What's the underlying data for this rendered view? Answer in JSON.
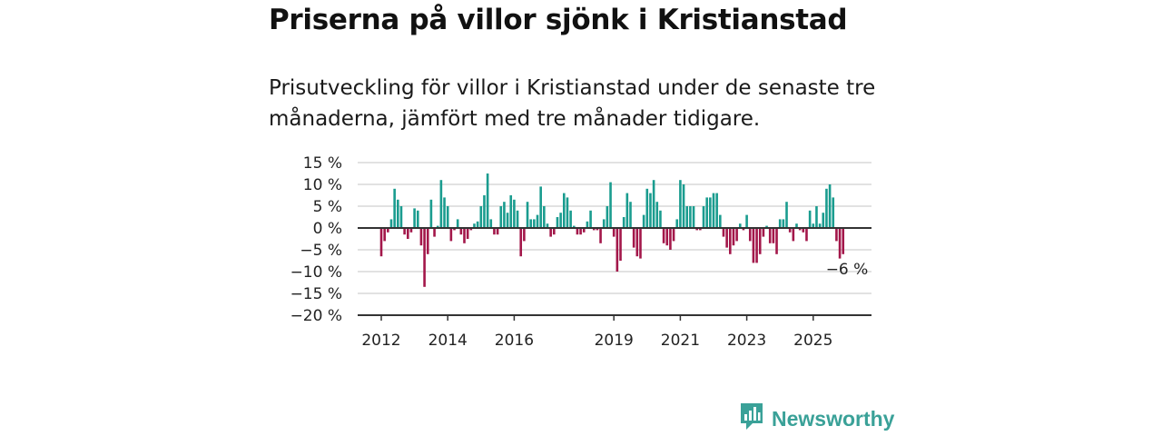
{
  "header": {
    "title": "Priserna på villor sjönk i Kristianstad",
    "subtitle": "Prisutveckling för villor i Kristianstad under de senaste tre månaderna, jämfört med tre månader tidigare."
  },
  "brand": {
    "name": "Newsworthy",
    "icon": "newsworthy-logo-icon",
    "color": "#3aa198"
  },
  "colors": {
    "positive": "#1a9c8f",
    "negative": "#a3174a",
    "grid": "#d9d9d9",
    "zero_line": "#333333"
  },
  "chart_data": {
    "type": "bar",
    "title": "",
    "xlabel": "",
    "ylabel": "",
    "ylim": [
      -20,
      15
    ],
    "yticks": [
      "15 %",
      "10 %",
      "5 %",
      "0 %",
      "−5 %",
      "−10 %",
      "−15 %",
      "−20 %"
    ],
    "ytick_values": [
      15,
      10,
      5,
      0,
      -5,
      -10,
      -15,
      -20
    ],
    "xticks": [
      "2012",
      "2014",
      "2016",
      "2019",
      "2021",
      "2023",
      "2025"
    ],
    "xtick_index": [
      0,
      20,
      40,
      70,
      90,
      110,
      130
    ],
    "annotation": {
      "text": "−6 %",
      "index": 134
    },
    "grid": true,
    "legend": "none",
    "series": [
      {
        "values": [
          -6.5,
          -3.0,
          -1.0,
          2.0,
          9.0,
          6.5,
          5.0,
          -1.5,
          -2.5,
          -1.0,
          4.5,
          4.0,
          -4.0,
          -13.5,
          -6.0,
          6.5,
          -2.0,
          0.5,
          11.0,
          7.0,
          5.0,
          -3.0,
          -0.5,
          2.0,
          -1.5,
          -3.5,
          -2.5,
          -0.5,
          1.0,
          1.5,
          5.0,
          7.5,
          12.5,
          2.0,
          -1.5,
          -1.5,
          5.0,
          6.0,
          3.5,
          7.5,
          6.5,
          4.0,
          -6.5,
          -3.0,
          6.0,
          2.0,
          2.0,
          3.0,
          9.5,
          5.0,
          1.0,
          -2.0,
          -1.5,
          2.5,
          3.5,
          8.0,
          7.0,
          4.0,
          0.5,
          -1.5,
          -1.5,
          -1.0,
          1.5,
          4.0,
          -0.5,
          -0.5,
          -3.5,
          2.0,
          5.0,
          10.5,
          -2.0,
          -10.0,
          -7.5,
          2.5,
          8.0,
          6.0,
          -4.5,
          -6.5,
          -7.0,
          3.0,
          9.0,
          8.0,
          11.0,
          6.0,
          4.0,
          -3.5,
          -4.0,
          -5.0,
          -3.0,
          2.0,
          11.0,
          10.0,
          5.0,
          5.0,
          5.0,
          -0.5,
          -0.5,
          5.0,
          7.0,
          7.0,
          8.0,
          8.0,
          3.0,
          -2.0,
          -4.5,
          -6.0,
          -4.0,
          -3.0,
          1.0,
          -0.5,
          3.0,
          -3.0,
          -8.0,
          -8.0,
          -6.0,
          -2.0,
          0.5,
          -3.5,
          -3.5,
          -6.0,
          2.0,
          2.0,
          6.0,
          -1.0,
          -3.0,
          1.0,
          -0.5,
          -1.0,
          -3.0,
          4.0,
          1.0,
          5.0,
          1.0,
          3.5,
          9.0,
          10.0,
          7.0,
          -3.0,
          -7.0,
          -6.0
        ]
      }
    ]
  }
}
